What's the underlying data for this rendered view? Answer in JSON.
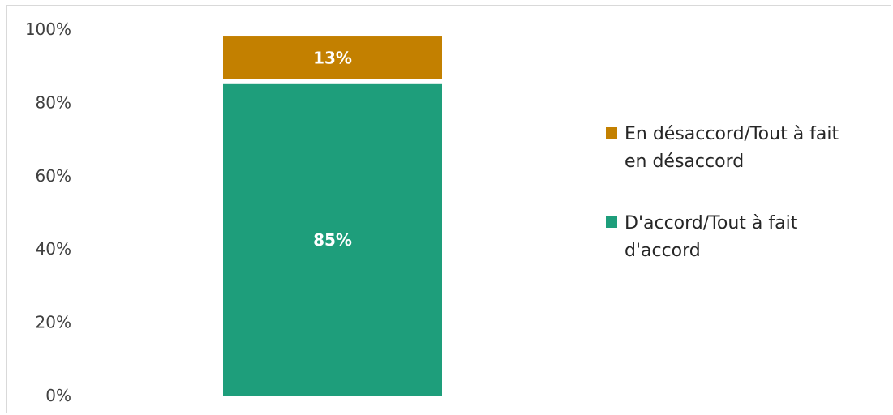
{
  "chart_data": {
    "type": "bar",
    "stacked": true,
    "categories": [
      ""
    ],
    "series": [
      {
        "name": "D'accord/Tout à fait d'accord",
        "values": [
          85
        ],
        "color": "#1e9e7b",
        "label": "85%"
      },
      {
        "name": "En désaccord/Tout à fait en désaccord",
        "values": [
          13
        ],
        "color": "#c38000",
        "label": "13%"
      }
    ],
    "ylim": [
      0,
      100
    ],
    "yticks": [
      "0%",
      "20%",
      "40%",
      "60%",
      "80%",
      "100%"
    ],
    "grid": false,
    "legend_position": "right"
  }
}
